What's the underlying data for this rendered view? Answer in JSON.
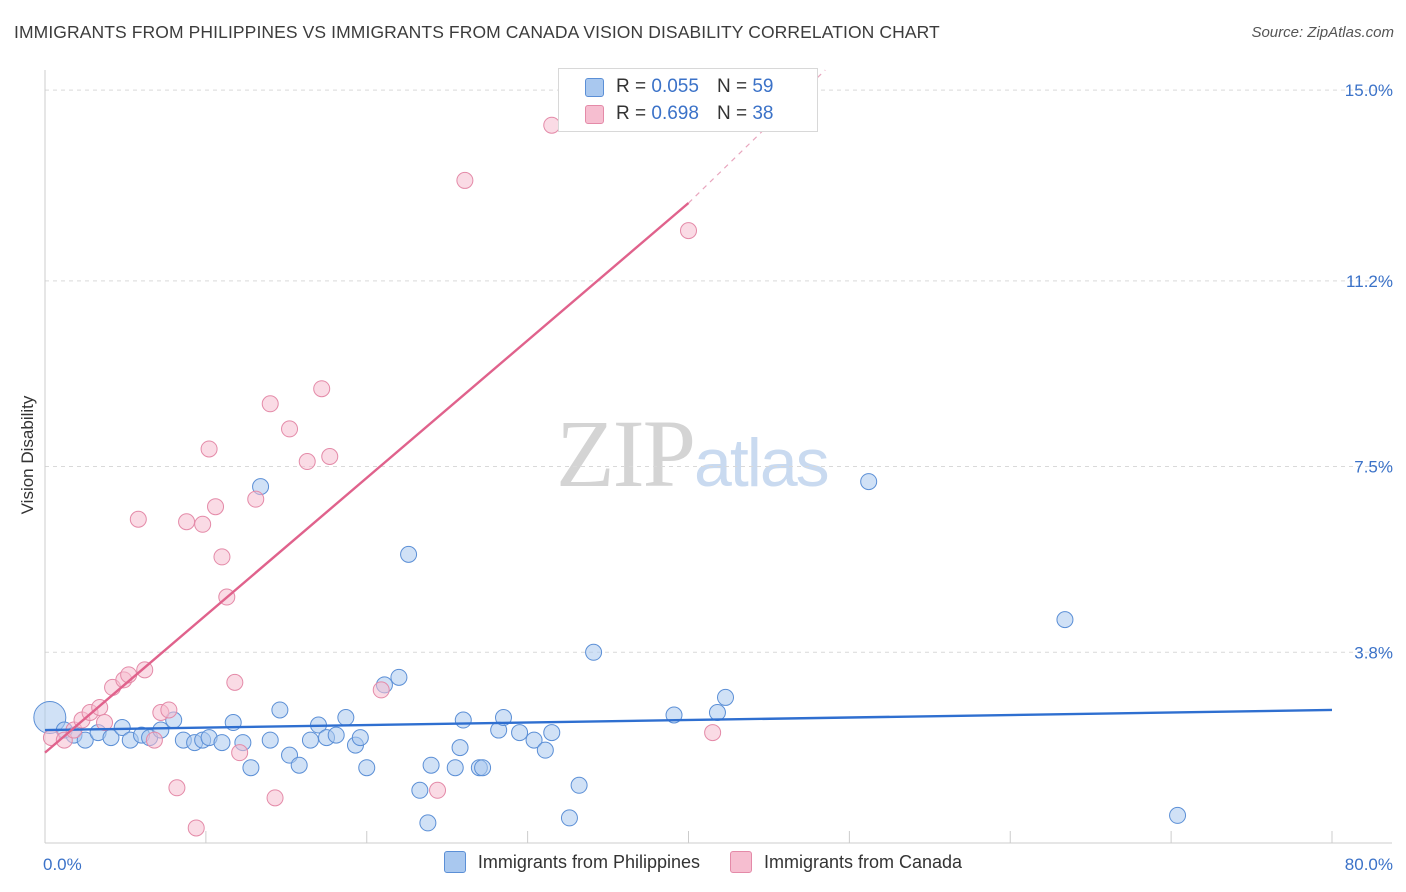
{
  "title": "IMMIGRANTS FROM PHILIPPINES VS IMMIGRANTS FROM CANADA VISION DISABILITY CORRELATION CHART",
  "source": "Source: ZipAtlas.com",
  "watermark": {
    "zip": "ZIP",
    "atlas": "atlas"
  },
  "legend": {
    "r_label": "R =",
    "n_label": "N =",
    "rows": [
      {
        "r": "0.055",
        "n": "59"
      },
      {
        "r": "0.698",
        "n": "38"
      }
    ]
  },
  "chart_data": {
    "type": "scatter",
    "title": "IMMIGRANTS FROM PHILIPPINES VS IMMIGRANTS FROM CANADA VISION DISABILITY CORRELATION CHART",
    "xlabel": "",
    "ylabel": "Vision Disability",
    "xlim": [
      0,
      80
    ],
    "ylim": [
      0,
      15.4
    ],
    "x_tick_labels": [
      "0.0%",
      "80.0%"
    ],
    "y_ticks": [
      3.8,
      7.5,
      11.2,
      15.0
    ],
    "y_tick_labels": [
      "3.8%",
      "7.5%",
      "11.2%",
      "15.0%"
    ],
    "grid": true,
    "legend_position": "top-center",
    "series": [
      {
        "name": "Immigrants from Philippines",
        "color": "#a9c8ef",
        "stroke": "#5b8fd6",
        "trend_color": "#2f6fd0",
        "trend": [
          [
            0,
            2.25
          ],
          [
            80,
            2.65
          ]
        ],
        "points": [
          [
            0.3,
            2.5
          ],
          [
            1.2,
            2.25
          ],
          [
            1.8,
            2.15
          ],
          [
            2.5,
            2.05
          ],
          [
            3.3,
            2.2
          ],
          [
            4.1,
            2.1
          ],
          [
            4.8,
            2.3
          ],
          [
            5.3,
            2.05
          ],
          [
            6.0,
            2.15
          ],
          [
            6.5,
            2.1
          ],
          [
            7.2,
            2.25
          ],
          [
            8.0,
            2.45
          ],
          [
            8.6,
            2.05
          ],
          [
            9.3,
            2.0
          ],
          [
            9.8,
            2.05
          ],
          [
            10.2,
            2.1
          ],
          [
            11.0,
            2.0
          ],
          [
            11.7,
            2.4
          ],
          [
            12.3,
            2.0
          ],
          [
            12.8,
            1.5
          ],
          [
            13.4,
            7.1
          ],
          [
            14.0,
            2.05
          ],
          [
            14.6,
            2.65
          ],
          [
            15.2,
            1.75
          ],
          [
            15.8,
            1.55
          ],
          [
            16.5,
            2.05
          ],
          [
            17.0,
            2.35
          ],
          [
            17.5,
            2.1
          ],
          [
            18.1,
            2.15
          ],
          [
            18.7,
            2.5
          ],
          [
            19.3,
            1.95
          ],
          [
            19.6,
            2.1
          ],
          [
            20.0,
            1.5
          ],
          [
            21.1,
            3.15
          ],
          [
            22.0,
            3.3
          ],
          [
            22.6,
            5.75
          ],
          [
            23.3,
            1.05
          ],
          [
            23.8,
            0.4
          ],
          [
            24.0,
            1.55
          ],
          [
            25.5,
            1.5
          ],
          [
            25.8,
            1.9
          ],
          [
            26.0,
            2.45
          ],
          [
            27.0,
            1.5
          ],
          [
            27.2,
            1.5
          ],
          [
            28.2,
            2.25
          ],
          [
            28.5,
            2.5
          ],
          [
            29.5,
            2.2
          ],
          [
            30.4,
            2.05
          ],
          [
            31.1,
            1.85
          ],
          [
            31.5,
            2.2
          ],
          [
            32.6,
            0.5
          ],
          [
            33.2,
            1.15
          ],
          [
            34.1,
            3.8
          ],
          [
            39.1,
            2.55
          ],
          [
            41.8,
            2.6
          ],
          [
            42.3,
            2.9
          ],
          [
            51.2,
            7.2
          ],
          [
            63.4,
            4.45
          ],
          [
            70.4,
            0.55
          ]
        ]
      },
      {
        "name": "Immigrants from Canada",
        "color": "#f6bed0",
        "stroke": "#e48aa8",
        "trend_color": "#e0628c",
        "trend": [
          [
            0,
            1.8
          ],
          [
            40,
            12.75
          ]
        ],
        "trend_dashed": [
          [
            40,
            12.75
          ],
          [
            48.5,
            15.4
          ]
        ],
        "points": [
          [
            0.4,
            2.1
          ],
          [
            1.2,
            2.05
          ],
          [
            1.8,
            2.25
          ],
          [
            2.3,
            2.45
          ],
          [
            2.8,
            2.6
          ],
          [
            3.4,
            2.7
          ],
          [
            3.7,
            2.4
          ],
          [
            4.2,
            3.1
          ],
          [
            4.9,
            3.25
          ],
          [
            5.2,
            3.35
          ],
          [
            5.8,
            6.45
          ],
          [
            6.2,
            3.45
          ],
          [
            6.8,
            2.05
          ],
          [
            7.2,
            2.6
          ],
          [
            7.7,
            2.65
          ],
          [
            8.2,
            1.1
          ],
          [
            8.8,
            6.4
          ],
          [
            9.4,
            0.3
          ],
          [
            9.8,
            6.35
          ],
          [
            10.2,
            7.85
          ],
          [
            10.6,
            6.7
          ],
          [
            11.0,
            5.7
          ],
          [
            11.3,
            4.9
          ],
          [
            11.8,
            3.2
          ],
          [
            12.1,
            1.8
          ],
          [
            13.1,
            6.85
          ],
          [
            14.0,
            8.75
          ],
          [
            14.3,
            0.9
          ],
          [
            15.2,
            8.25
          ],
          [
            16.3,
            7.6
          ],
          [
            17.2,
            9.05
          ],
          [
            17.7,
            7.7
          ],
          [
            20.9,
            3.05
          ],
          [
            24.4,
            1.05
          ],
          [
            26.1,
            13.2
          ],
          [
            31.5,
            14.3
          ],
          [
            40.0,
            12.2
          ],
          [
            41.5,
            2.2
          ]
        ]
      }
    ]
  }
}
